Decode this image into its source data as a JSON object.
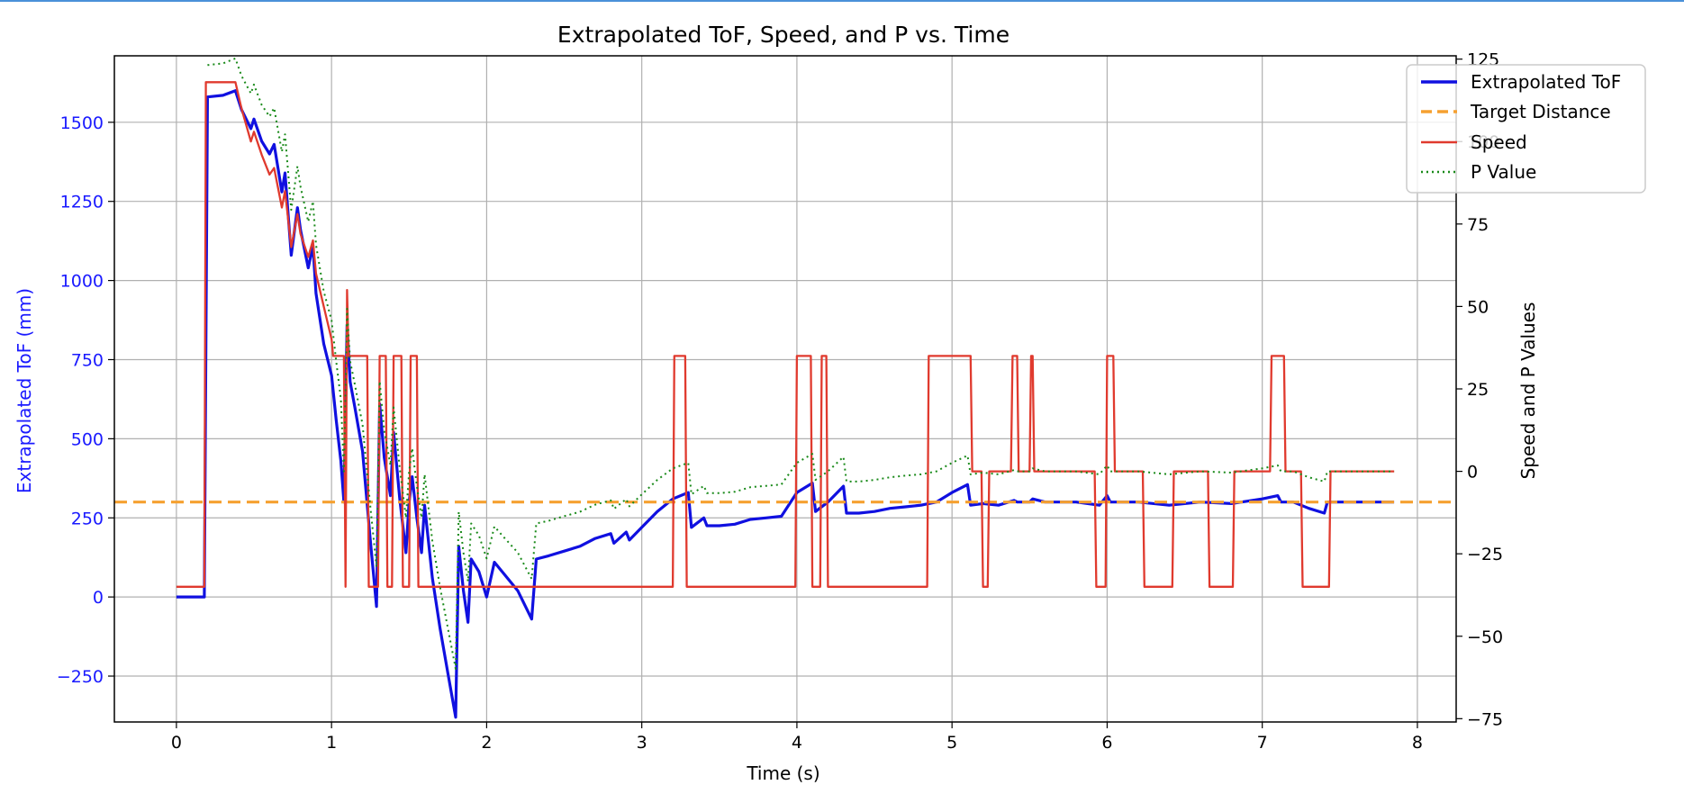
{
  "chart_data": {
    "type": "line",
    "title": "Extrapolated ToF, Speed, and P vs. Time",
    "xlabel": "Time (s)",
    "ylabel_left": "Extrapolated ToF (mm)",
    "ylabel_right": "Speed and P Values",
    "xlim": [
      -0.4,
      8.25
    ],
    "ylim_left": [
      -395,
      1710
    ],
    "ylim_right": [
      -76,
      126
    ],
    "x_ticks": [
      0,
      1,
      2,
      3,
      4,
      5,
      6,
      7,
      8
    ],
    "y_left_ticks": [
      -250,
      0,
      250,
      500,
      750,
      1000,
      1250,
      1500
    ],
    "y_left_tick_labels": [
      "−250",
      "0",
      "250",
      "500",
      "750",
      "1000",
      "1250",
      "1500"
    ],
    "y_right_ticks": [
      -75,
      -50,
      -25,
      0,
      25,
      50,
      75,
      100,
      125
    ],
    "y_right_tick_labels": [
      "−75",
      "−50",
      "−25",
      "0",
      "25",
      "50",
      "75",
      "100",
      "125"
    ],
    "grid": true,
    "legend_position": "top-right",
    "colors": {
      "tof": "#1010e0",
      "target": "#f5a030",
      "speed": "#e03a2e",
      "p_value": "#1a8a1a",
      "left_axis_text": "#1a1aff"
    },
    "series": [
      {
        "name": "Extrapolated ToF",
        "axis": "left",
        "x": [
          0,
          0.18,
          0.2,
          0.3,
          0.38,
          0.42,
          0.48,
          0.5,
          0.55,
          0.6,
          0.63,
          0.68,
          0.7,
          0.74,
          0.78,
          0.8,
          0.85,
          0.88,
          0.9,
          0.95,
          1.0,
          1.03,
          1.06,
          1.08,
          1.1,
          1.12,
          1.15,
          1.2,
          1.25,
          1.29,
          1.31,
          1.34,
          1.38,
          1.4,
          1.44,
          1.48,
          1.5,
          1.52,
          1.55,
          1.58,
          1.6,
          1.65,
          1.7,
          1.75,
          1.8,
          1.82,
          1.85,
          1.88,
          1.9,
          1.95,
          2.0,
          2.05,
          2.1,
          2.2,
          2.29,
          2.32,
          2.4,
          2.5,
          2.6,
          2.7,
          2.8,
          2.82,
          2.9,
          2.92,
          3.0,
          3.1,
          3.2,
          3.3,
          3.32,
          3.4,
          3.42,
          3.5,
          3.6,
          3.7,
          3.8,
          3.9,
          4.0,
          4.1,
          4.12,
          4.2,
          4.3,
          4.32,
          4.4,
          4.5,
          4.6,
          4.7,
          4.8,
          4.9,
          5.0,
          5.1,
          5.12,
          5.2,
          5.3,
          5.4,
          5.42,
          5.5,
          5.52,
          5.6,
          5.8,
          5.95,
          6.0,
          6.02,
          6.2,
          6.4,
          6.6,
          6.8,
          7.0,
          7.1,
          7.12,
          7.2,
          7.3,
          7.4,
          7.42,
          7.5,
          7.7,
          7.85
        ],
        "y": [
          0,
          0,
          1580,
          1585,
          1600,
          1540,
          1480,
          1510,
          1440,
          1400,
          1430,
          1280,
          1340,
          1080,
          1230,
          1160,
          1040,
          1110,
          960,
          800,
          700,
          560,
          430,
          300,
          860,
          680,
          600,
          460,
          180,
          -30,
          610,
          440,
          320,
          520,
          310,
          140,
          300,
          380,
          250,
          140,
          290,
          60,
          -100,
          -240,
          -380,
          160,
          20,
          -80,
          120,
          80,
          0,
          110,
          80,
          20,
          -70,
          120,
          130,
          145,
          160,
          185,
          200,
          170,
          205,
          180,
          220,
          270,
          310,
          330,
          220,
          250,
          225,
          225,
          230,
          245,
          250,
          255,
          330,
          360,
          270,
          300,
          350,
          265,
          265,
          270,
          280,
          285,
          290,
          300,
          330,
          355,
          290,
          295,
          290,
          305,
          300,
          300,
          310,
          300,
          300,
          290,
          320,
          300,
          300,
          290,
          300,
          295,
          310,
          320,
          300,
          300,
          280,
          265,
          300,
          300,
          300,
          300
        ]
      },
      {
        "name": "Target Distance",
        "axis": "left",
        "x": [
          -0.4,
          8.25
        ],
        "y": [
          300,
          300
        ]
      },
      {
        "name": "Speed",
        "axis": "right",
        "x": [
          0,
          0.18,
          0.19,
          0.2,
          0.3,
          0.38,
          0.42,
          0.48,
          0.5,
          0.55,
          0.6,
          0.63,
          0.68,
          0.7,
          0.74,
          0.78,
          0.8,
          0.85,
          0.88,
          0.9,
          0.95,
          1.0,
          1.01,
          1.08,
          1.09,
          1.1,
          1.11,
          1.23,
          1.24,
          1.3,
          1.31,
          1.35,
          1.36,
          1.39,
          1.4,
          1.45,
          1.46,
          1.5,
          1.51,
          1.55,
          1.56,
          1.63,
          1.64,
          3.2,
          3.21,
          3.28,
          3.29,
          3.99,
          4.0,
          4.09,
          4.1,
          4.15,
          4.16,
          4.19,
          4.2,
          4.3,
          4.31,
          4.84,
          4.85,
          5.12,
          5.13,
          5.19,
          5.2,
          5.23,
          5.24,
          5.38,
          5.39,
          5.42,
          5.43,
          5.5,
          5.51,
          5.52,
          5.53,
          5.92,
          5.93,
          5.99,
          6.0,
          6.04,
          6.05,
          6.23,
          6.24,
          6.42,
          6.43,
          6.65,
          6.66,
          6.81,
          6.82,
          7.05,
          7.06,
          7.14,
          7.15,
          7.25,
          7.26,
          7.43,
          7.44,
          7.85
        ],
        "y": [
          -35,
          -35,
          118,
          118,
          118,
          118,
          110,
          100,
          103,
          96,
          90,
          92,
          80,
          85,
          68,
          78,
          72,
          65,
          70,
          60,
          50,
          40,
          35,
          35,
          -35,
          55,
          35,
          35,
          -35,
          -35,
          35,
          35,
          -35,
          -35,
          35,
          35,
          -35,
          -35,
          35,
          35,
          -35,
          -35,
          -35,
          -35,
          35,
          35,
          -35,
          -35,
          35,
          35,
          -35,
          -35,
          35,
          35,
          -35,
          -35,
          -35,
          -35,
          35,
          35,
          0,
          0,
          -35,
          -35,
          0,
          0,
          35,
          35,
          0,
          0,
          35,
          35,
          0,
          0,
          -35,
          -35,
          35,
          35,
          0,
          0,
          -35,
          -35,
          0,
          0,
          -35,
          -35,
          0,
          0,
          35,
          35,
          0,
          0,
          -35,
          -35,
          0,
          0
        ]
      },
      {
        "name": "P Value",
        "axis": "right",
        "x": [
          0.2,
          0.3,
          0.38,
          0.42,
          0.48,
          0.5,
          0.55,
          0.6,
          0.63,
          0.68,
          0.7,
          0.74,
          0.78,
          0.8,
          0.85,
          0.88,
          0.9,
          0.95,
          1.0,
          1.03,
          1.06,
          1.08,
          1.1,
          1.12,
          1.15,
          1.2,
          1.25,
          1.29,
          1.31,
          1.34,
          1.38,
          1.4,
          1.44,
          1.48,
          1.5,
          1.52,
          1.55,
          1.58,
          1.6,
          1.65,
          1.7,
          1.75,
          1.8,
          1.82,
          1.85,
          1.88,
          1.9,
          1.95,
          2.0,
          2.05,
          2.1,
          2.2,
          2.29,
          2.32,
          2.4,
          2.5,
          2.6,
          2.7,
          2.8,
          2.82,
          2.9,
          2.92,
          3.0,
          3.1,
          3.2,
          3.3,
          3.32,
          3.4,
          3.42,
          3.5,
          3.6,
          3.7,
          3.8,
          3.9,
          4.0,
          4.1,
          4.12,
          4.2,
          4.3,
          4.32,
          4.4,
          4.5,
          4.6,
          4.7,
          4.8,
          4.9,
          5.0,
          5.1,
          5.12,
          5.2,
          5.3,
          5.4,
          5.42,
          5.5,
          5.52,
          5.6,
          5.8,
          5.95,
          6.0,
          6.02,
          6.2,
          6.4,
          6.6,
          6.8,
          7.0,
          7.1,
          7.12,
          7.2,
          7.3,
          7.4,
          7.42,
          7.5,
          7.7,
          7.85
        ],
        "y": [
          123.2,
          123.7,
          125.2,
          119.9,
          114.6,
          117.3,
          111.1,
          107.6,
          110.2,
          96.9,
          102.2,
          79.3,
          92.5,
          86.3,
          75.7,
          81.9,
          68.7,
          54.6,
          45.8,
          33.4,
          22.0,
          0,
          49.3,
          33.4,
          26.4,
          14.1,
          -10.6,
          -29.0,
          27.3,
          12.3,
          1.8,
          19.4,
          0.9,
          -14.1,
          0,
          7.0,
          -4.4,
          -14.1,
          -0.9,
          -21.1,
          -35.2,
          -47.5,
          -59.9,
          -12.3,
          -24.6,
          -33.4,
          -15.8,
          -19.4,
          -26.4,
          -16.7,
          -19.4,
          -24.6,
          -32.6,
          -15.8,
          -15.0,
          -13.6,
          -12.3,
          -10.1,
          -8.8,
          -11.4,
          -8.4,
          -10.6,
          -7.0,
          -2.6,
          0.9,
          2.6,
          -7.0,
          -4.4,
          -6.6,
          -6.6,
          -6.2,
          -4.8,
          -4.4,
          -4.0,
          2.6,
          5.3,
          -2.6,
          0,
          4.4,
          -3.1,
          -3.1,
          -2.6,
          -1.8,
          -1.3,
          -0.9,
          0,
          2.6,
          4.8,
          -0.9,
          -0.4,
          -0.9,
          0.4,
          0,
          0,
          0.9,
          0,
          0,
          -0.9,
          1.8,
          0,
          0,
          -0.9,
          0,
          -0.4,
          0.9,
          1.8,
          0,
          0,
          -1.8,
          -3.1,
          0,
          0,
          0,
          0
        ]
      }
    ]
  }
}
